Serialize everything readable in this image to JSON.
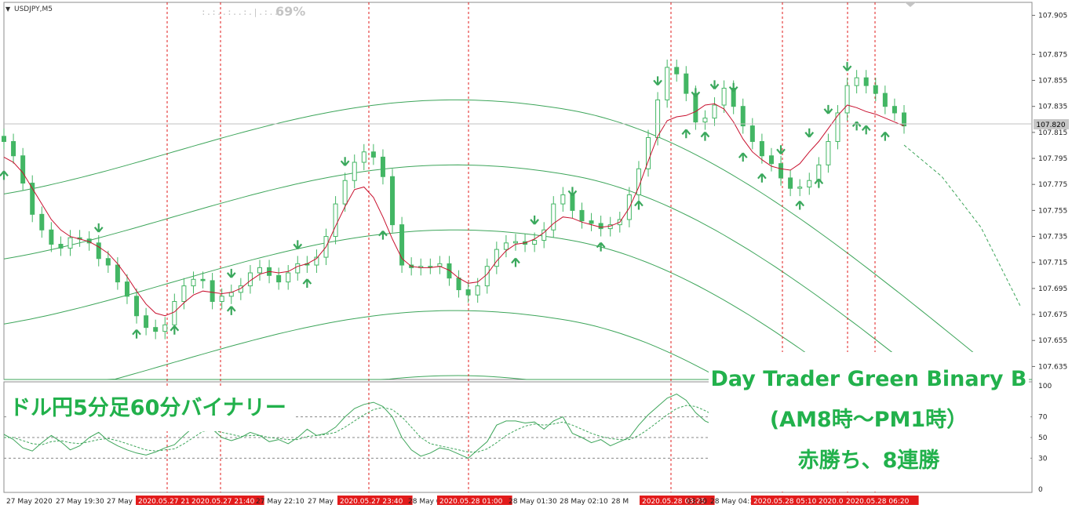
{
  "header": {
    "symbol_label": "USDJPY,M5",
    "spread_indicator": "69%"
  },
  "colors": {
    "up_candle": "#43b664",
    "down_candle": "#43b664",
    "ma": "#c8102e",
    "channel": "#3da55a",
    "arrow": "#3aa85c",
    "signal_line": "#e21b1b",
    "current_price_label_bg": "#c6c6c6",
    "highlight_label_bg": "#e21b1b",
    "overlay_text": "#22b14c"
  },
  "overlays": {
    "title": "ドル円5分足60分バイナリー",
    "result_lines": [
      "Day Trader Green Binary B",
      "(AM8時～PM1時）",
      "赤勝ち、8連勝"
    ]
  },
  "chart_data": [
    {
      "type": "candlestick",
      "title": "USDJPY,M5",
      "ylim": [
        107.625,
        107.915
      ],
      "y_ticks": [
        "107.905",
        "107.875",
        "107.855",
        "107.835",
        "107.815",
        "107.795",
        "107.775",
        "107.755",
        "107.735",
        "107.715",
        "107.695",
        "107.675",
        "107.655",
        "107.635"
      ],
      "current_price": "107.820",
      "x_tick_labels": [
        "27 May 2020",
        "27 May 19:30",
        "27 May",
        "2020.05.27 21",
        "2020.05.27 21:40",
        "27 May 22:10",
        "27 May",
        "2020.05.27 23:40",
        "28 May 0",
        "2020.05.28 01:00",
        "28 May 01:30",
        "28 May 02:10",
        "28 M",
        "2020.05.28 03:25",
        "03:30",
        "28 May 04:1",
        "2020.05.28 05:10",
        "2020.0",
        "2020.05.28 06:20"
      ],
      "highlighted_x_labels": [
        "2020.05.27 21",
        "2020.05.27 21:40",
        "2020.05.27 23:40",
        "2020.05.28 01:00",
        "2020.05.28 03:25",
        "2020.05.28 05:10",
        "2020.0",
        "2020.05.28 06:20"
      ],
      "close_approx": [
        107.808,
        107.797,
        107.776,
        107.752,
        107.74,
        107.729,
        107.726,
        107.734,
        107.733,
        107.73,
        107.718,
        107.713,
        107.7,
        107.689,
        107.674,
        107.665,
        107.662,
        107.667,
        107.685,
        107.697,
        107.702,
        107.701,
        107.685,
        107.689,
        107.692,
        107.697,
        107.707,
        107.711,
        107.705,
        107.7,
        107.707,
        107.714,
        107.713,
        107.719,
        107.735,
        107.76,
        107.778,
        107.792,
        107.8,
        107.796,
        107.781,
        107.744,
        107.713,
        107.711,
        107.712,
        107.712,
        107.714,
        107.703,
        107.694,
        107.69,
        107.697,
        107.712,
        107.725,
        107.73,
        107.731,
        107.729,
        107.732,
        107.74,
        107.76,
        107.767,
        107.755,
        107.747,
        107.745,
        107.741,
        107.744,
        107.748,
        107.767,
        107.787,
        107.811,
        107.84,
        107.865,
        107.86,
        107.845,
        107.823,
        107.826,
        107.836,
        107.849,
        107.835,
        107.82,
        107.808,
        107.797,
        107.791,
        107.78,
        107.772,
        107.773,
        107.778,
        107.79,
        107.808,
        107.83,
        107.851,
        107.857,
        107.851,
        107.845,
        107.835,
        107.83,
        107.82
      ],
      "ma_values": [
        107.796,
        107.792,
        107.784,
        107.772,
        107.76,
        107.748,
        107.74,
        107.735,
        107.733,
        107.731,
        107.727,
        107.722,
        107.714,
        107.704,
        107.693,
        107.683,
        107.676,
        107.674,
        107.677,
        107.684,
        107.69,
        107.693,
        107.692,
        107.691,
        107.692,
        107.695,
        107.701,
        107.706,
        107.708,
        107.707,
        107.708,
        107.712,
        107.714,
        107.718,
        107.727,
        107.743,
        107.758,
        107.771,
        107.773,
        107.765,
        107.75,
        107.733,
        107.718,
        107.712,
        107.711,
        107.711,
        107.712,
        107.709,
        107.703,
        107.699,
        107.7,
        107.706,
        107.716,
        107.724,
        107.729,
        107.73,
        107.733,
        107.738,
        107.745,
        107.75,
        107.749,
        107.746,
        107.744,
        107.742,
        107.743,
        107.746,
        107.757,
        107.773,
        107.793,
        107.812,
        107.824,
        107.827,
        107.828,
        107.831,
        107.836,
        107.837,
        107.833,
        107.823,
        107.81,
        107.8,
        107.794,
        107.789,
        107.787,
        107.786,
        107.791,
        107.8,
        107.808,
        107.818,
        107.828,
        107.836,
        107.834,
        107.831,
        107.829,
        107.826,
        107.823,
        107.82
      ],
      "buy_arrow_count": 24,
      "sell_arrow_count": 17
    },
    {
      "type": "line",
      "title": "",
      "ylim": [
        0,
        100
      ],
      "y_ticks": [
        100,
        70,
        50,
        30,
        0
      ],
      "levels": [
        70,
        50,
        30
      ],
      "series": [
        {
          "values": [
            53,
            48,
            40,
            37,
            45,
            52,
            46,
            38,
            42,
            50,
            55,
            47,
            42,
            38,
            35,
            33,
            36,
            40,
            43,
            52,
            60,
            66,
            58,
            50,
            47,
            50,
            55,
            52,
            46,
            48,
            44,
            50,
            58,
            52,
            54,
            60,
            70,
            78,
            82,
            84,
            80,
            70,
            50,
            38,
            32,
            35,
            40,
            38,
            34,
            30,
            38,
            46,
            62,
            66,
            66,
            64,
            65,
            58,
            66,
            70,
            54,
            50,
            45,
            48,
            42,
            46,
            50,
            62,
            72,
            80,
            88,
            92,
            86,
            74,
            66,
            62,
            65,
            58,
            48,
            52,
            44,
            52,
            66,
            70,
            80,
            84,
            82,
            77,
            79,
            76,
            70,
            68,
            66,
            63,
            60,
            58
          ]
        },
        {
          "values": [
            50,
            50,
            47,
            44,
            43,
            46,
            47,
            45,
            44,
            46,
            48,
            49,
            47,
            44,
            41,
            38,
            37,
            38,
            39,
            44,
            50,
            56,
            57,
            55,
            53,
            51,
            52,
            52,
            50,
            49,
            48,
            48,
            51,
            52,
            53,
            55,
            60,
            66,
            72,
            77,
            79,
            77,
            70,
            60,
            50,
            44,
            42,
            40,
            38,
            36,
            36,
            39,
            45,
            52,
            57,
            61,
            63,
            62,
            63,
            65,
            62,
            58,
            54,
            51,
            49,
            48,
            48,
            52,
            58,
            65,
            72,
            78,
            81,
            80,
            76,
            71,
            68,
            65,
            60,
            57,
            55,
            54,
            56,
            59,
            64,
            70,
            75,
            77,
            78,
            78,
            76,
            74,
            72,
            70,
            68,
            66
          ]
        }
      ]
    }
  ]
}
